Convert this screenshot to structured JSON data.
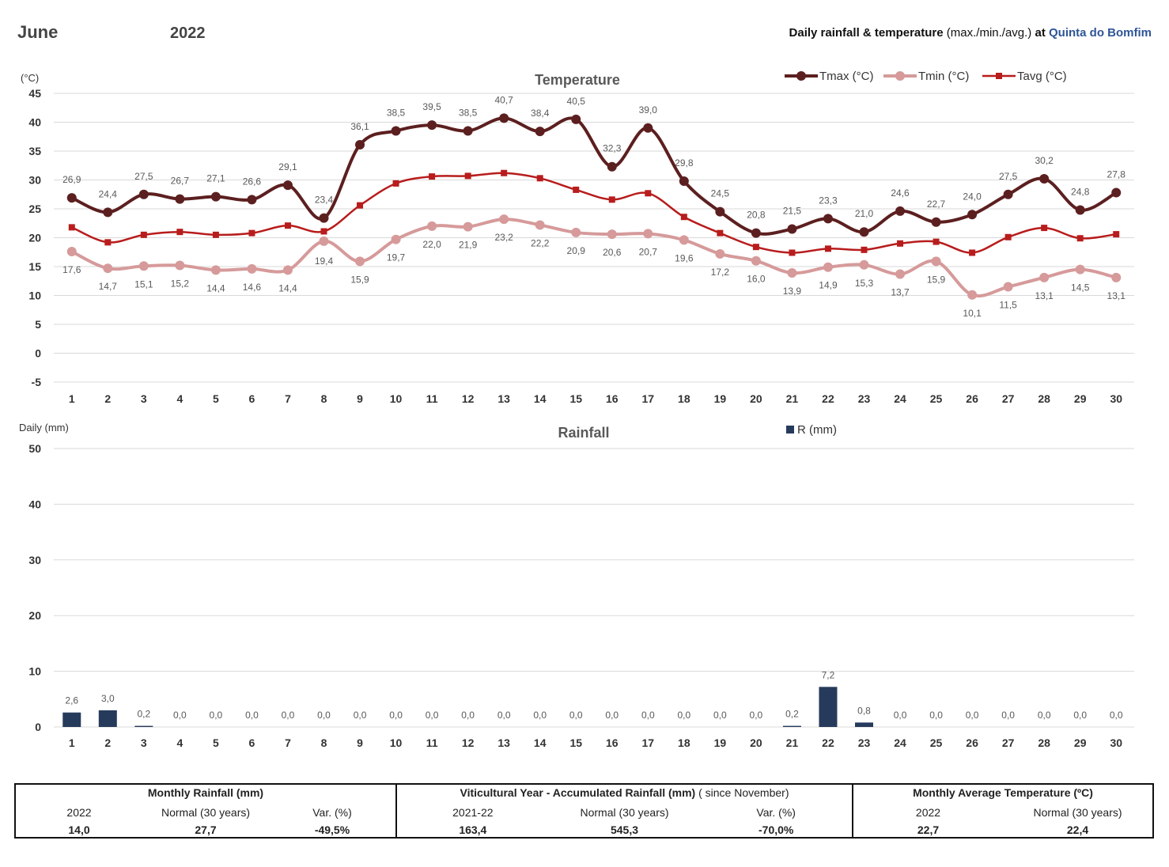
{
  "header": {
    "month": "June",
    "year": "2022",
    "title_bold": "Daily rainfall & temperature",
    "title_light": "(max./min./avg.)",
    "title_at": "at",
    "site": "Quinta do Bomfim"
  },
  "colors": {
    "tmax": "#5c1f1f",
    "tmin": "#d69a9a",
    "tavg": "#b81c1c",
    "rain": "#263b5c",
    "grid": "#d9d9d9"
  },
  "chart_data": [
    {
      "type": "line",
      "title": "Temperature",
      "ylabel": "(°C)",
      "ylim": [
        -5,
        45
      ],
      "yticks": [
        -5,
        0,
        5,
        10,
        15,
        20,
        25,
        30,
        35,
        40,
        45
      ],
      "x": [
        1,
        2,
        3,
        4,
        5,
        6,
        7,
        8,
        9,
        10,
        11,
        12,
        13,
        14,
        15,
        16,
        17,
        18,
        19,
        20,
        21,
        22,
        23,
        24,
        25,
        26,
        27,
        28,
        29,
        30
      ],
      "legend_position": "top-right",
      "grid": true,
      "series": [
        {
          "name": "Tmax (°C)",
          "values": [
            26.9,
            24.4,
            27.5,
            26.7,
            27.1,
            26.6,
            29.1,
            23.4,
            36.1,
            38.5,
            39.5,
            38.5,
            40.7,
            38.4,
            40.5,
            32.3,
            39.0,
            29.8,
            24.5,
            20.8,
            21.5,
            23.3,
            21.0,
            24.6,
            22.7,
            24.0,
            27.5,
            30.2,
            24.8,
            27.8
          ],
          "labels": [
            "26,9",
            "24,4",
            "27,5",
            "26,7",
            "27,1",
            "26,6",
            "29,1",
            "23,4",
            "36,1",
            "38,5",
            "39,5",
            "38,5",
            "40,7",
            "38,4",
            "40,5",
            "32,3",
            "39,0",
            "29,8",
            "24,5",
            "20,8",
            "21,5",
            "23,3",
            "21,0",
            "24,6",
            "22,7",
            "24,0",
            "27,5",
            "30,2",
            "24,8",
            "27,8"
          ]
        },
        {
          "name": "Tmin (°C)",
          "values": [
            17.6,
            14.7,
            15.1,
            15.2,
            14.4,
            14.6,
            14.4,
            19.4,
            15.9,
            19.7,
            22.0,
            21.9,
            23.2,
            22.2,
            20.9,
            20.6,
            20.7,
            19.6,
            17.2,
            16.0,
            13.9,
            14.9,
            15.3,
            13.7,
            15.9,
            10.1,
            11.5,
            13.1,
            14.5,
            13.1
          ],
          "labels": [
            "17,6",
            "14,7",
            "15,1",
            "15,2",
            "14,4",
            "14,6",
            "14,4",
            "19,4",
            "15,9",
            "19,7",
            "22,0",
            "21,9",
            "23,2",
            "22,2",
            "20,9",
            "20,6",
            "20,7",
            "19,6",
            "17,2",
            "16,0",
            "13,9",
            "14,9",
            "15,3",
            "13,7",
            "15,9",
            "10,1",
            "11,5",
            "13,1",
            "14,5",
            "13,1"
          ]
        },
        {
          "name": "Tavg (°C)",
          "values": [
            21.8,
            19.2,
            20.5,
            21.0,
            20.5,
            20.8,
            22.1,
            21.1,
            25.6,
            29.4,
            30.6,
            30.7,
            31.2,
            30.3,
            28.3,
            26.6,
            27.7,
            23.6,
            20.8,
            18.4,
            17.4,
            18.1,
            17.9,
            19.0,
            19.3,
            17.4,
            20.1,
            21.7,
            19.9,
            20.6
          ]
        }
      ]
    },
    {
      "type": "bar",
      "title": "Rainfall",
      "ylabel": "Daily (mm)",
      "ylim": [
        0,
        50
      ],
      "yticks": [
        0,
        10,
        20,
        30,
        40,
        50
      ],
      "legend_position": "top",
      "grid": true,
      "categories": [
        1,
        2,
        3,
        4,
        5,
        6,
        7,
        8,
        9,
        10,
        11,
        12,
        13,
        14,
        15,
        16,
        17,
        18,
        19,
        20,
        21,
        22,
        23,
        24,
        25,
        26,
        27,
        28,
        29,
        30
      ],
      "series": [
        {
          "name": "R (mm)",
          "values": [
            2.6,
            3.0,
            0.2,
            0,
            0,
            0,
            0,
            0,
            0,
            0,
            0,
            0,
            0,
            0,
            0,
            0,
            0,
            0,
            0,
            0,
            0.2,
            7.2,
            0.8,
            0,
            0,
            0,
            0,
            0,
            0,
            0
          ],
          "labels": [
            "2,6",
            "3,0",
            "0,2",
            "0,0",
            "0,0",
            "0,0",
            "0,0",
            "0,0",
            "0,0",
            "0,0",
            "0,0",
            "0,0",
            "0,0",
            "0,0",
            "0,0",
            "0,0",
            "0,0",
            "0,0",
            "0,0",
            "0,0",
            "0,2",
            "7,2",
            "0,8",
            "0,0",
            "0,0",
            "0,0",
            "0,0",
            "0,0",
            "0,0",
            "0,0"
          ]
        }
      ]
    }
  ],
  "summary": {
    "monthly_rainfall": {
      "title": "Monthly Rainfall (mm)",
      "headers": [
        "2022",
        "Normal (30 years)",
        "Var. (%)"
      ],
      "values": [
        "14,0",
        "27,7",
        "-49,5%"
      ]
    },
    "viticultural_year": {
      "title": "Viticultural Year - Accumulated Rainfall (mm)",
      "title_note": "( since November)",
      "headers": [
        "2021-22",
        "Normal (30 years)",
        "Var. (%)"
      ],
      "values": [
        "163,4",
        "545,3",
        "-70,0%"
      ]
    },
    "monthly_avg_temp": {
      "title": "Monthly Average Temperature (ºC)",
      "headers": [
        "2022",
        "Normal (30 years)"
      ],
      "values": [
        "22,7",
        "22,4"
      ]
    }
  }
}
